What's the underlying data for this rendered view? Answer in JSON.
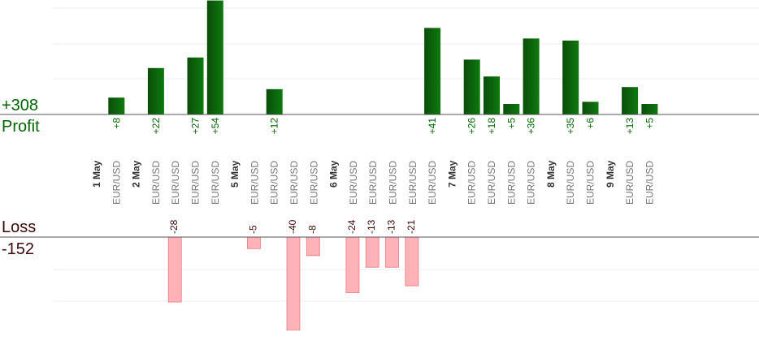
{
  "summary": {
    "profit_total": "+308",
    "profit_label": "Profit",
    "loss_label": "Loss",
    "loss_total": "-152"
  },
  "colors": {
    "profit_bar_dark": "#0a4d0a",
    "profit_bar_light": "#0e7a0e",
    "profit_text": "#006400",
    "loss_bar": "#ffb3b8",
    "loss_bar_edge": "#e67a80",
    "loss_text": "#3a0a0a",
    "category_text": "#777777",
    "date_text": "#333333"
  },
  "chart_data": {
    "type": "bar",
    "categories": [
      {
        "label": "1 May",
        "kind": "date"
      },
      {
        "label": "EUR/USD",
        "kind": "trade"
      },
      {
        "label": "2 May",
        "kind": "date"
      },
      {
        "label": "EUR/USD",
        "kind": "trade"
      },
      {
        "label": "EUR/USD",
        "kind": "trade"
      },
      {
        "label": "EUR/USD",
        "kind": "trade"
      },
      {
        "label": "EUR/USD",
        "kind": "trade"
      },
      {
        "label": "5 May",
        "kind": "date"
      },
      {
        "label": "EUR/USD",
        "kind": "trade"
      },
      {
        "label": "EUR/USD",
        "kind": "trade"
      },
      {
        "label": "EUR/USD",
        "kind": "trade"
      },
      {
        "label": "EUR/USD",
        "kind": "trade"
      },
      {
        "label": "6 May",
        "kind": "date"
      },
      {
        "label": "EUR/USD",
        "kind": "trade"
      },
      {
        "label": "EUR/USD",
        "kind": "trade"
      },
      {
        "label": "EUR/USD",
        "kind": "trade"
      },
      {
        "label": "EUR/USD",
        "kind": "trade"
      },
      {
        "label": "EUR/USD",
        "kind": "trade"
      },
      {
        "label": "7 May",
        "kind": "date"
      },
      {
        "label": "EUR/USD",
        "kind": "trade"
      },
      {
        "label": "EUR/USD",
        "kind": "trade"
      },
      {
        "label": "EUR/USD",
        "kind": "trade"
      },
      {
        "label": "EUR/USD",
        "kind": "trade"
      },
      {
        "label": "8 May",
        "kind": "date"
      },
      {
        "label": "EUR/USD",
        "kind": "trade"
      },
      {
        "label": "EUR/USD",
        "kind": "trade"
      },
      {
        "label": "9 May",
        "kind": "date"
      },
      {
        "label": "EUR/USD",
        "kind": "trade"
      },
      {
        "label": "EUR/USD",
        "kind": "trade"
      }
    ],
    "series": [
      {
        "name": "Profit",
        "values": [
          null,
          8,
          null,
          22,
          null,
          27,
          54,
          null,
          null,
          12,
          null,
          null,
          null,
          null,
          null,
          null,
          null,
          41,
          null,
          26,
          18,
          5,
          36,
          null,
          35,
          6,
          null,
          13,
          5
        ],
        "labels": [
          null,
          "+8",
          null,
          "+22",
          null,
          "+27",
          "+54",
          null,
          null,
          "+12",
          null,
          null,
          null,
          null,
          null,
          null,
          null,
          "+41",
          null,
          "+26",
          "+18",
          "+5",
          "+36",
          null,
          "+35",
          "+6",
          null,
          "+13",
          "+5"
        ]
      },
      {
        "name": "Loss",
        "values": [
          null,
          null,
          null,
          null,
          -28,
          null,
          null,
          null,
          -5,
          null,
          -40,
          -8,
          null,
          -24,
          -13,
          -13,
          -21,
          null,
          null,
          null,
          null,
          null,
          null,
          null,
          null,
          null,
          null,
          null,
          null
        ],
        "labels": [
          null,
          null,
          null,
          null,
          "-28",
          null,
          null,
          null,
          "-5",
          null,
          "-40",
          "-8",
          null,
          "-24",
          "-13",
          "-13",
          "-21",
          null,
          null,
          null,
          null,
          null,
          null,
          null,
          null,
          null,
          null,
          null,
          null
        ]
      }
    ],
    "profit_axis_max": 54,
    "loss_axis_min": -40,
    "grid": true
  }
}
